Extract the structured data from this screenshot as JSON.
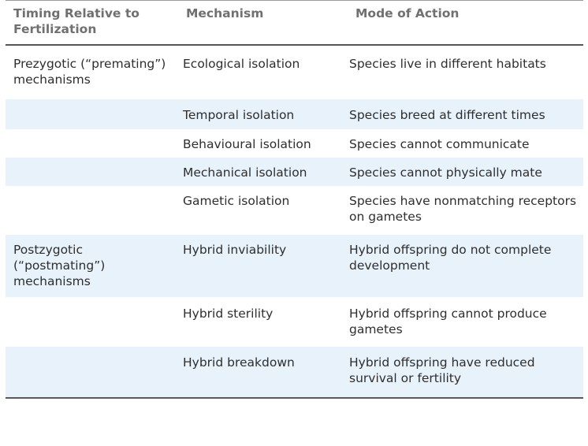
{
  "table": {
    "headers": {
      "timing": "Timing Relative to Fertilization",
      "mechanism": "Mechanism",
      "mode": "Mode of Action"
    },
    "rows": [
      {
        "timing": "Prezygotic (“premating”) mechanisms",
        "mechanism": "Ecological isolation",
        "mode": "Species live in different habitats",
        "shaded": false
      },
      {
        "timing": "",
        "mechanism": "Temporal isolation",
        "mode": "Species breed at different times",
        "shaded": true
      },
      {
        "timing": "",
        "mechanism": "Behavioural isolation",
        "mode": "Species cannot communicate",
        "shaded": false
      },
      {
        "timing": "",
        "mechanism": "Mechanical isolation",
        "mode": "Species cannot physically mate",
        "shaded": true
      },
      {
        "timing": "",
        "mechanism": "Gametic isolation",
        "mode": "Species have nonmatching receptors on gametes",
        "shaded": false
      },
      {
        "timing": "Postzygotic (“postmating”) mechanisms",
        "mechanism": "Hybrid inviability",
        "mode": "Hybrid offspring do not complete development",
        "shaded": true
      },
      {
        "timing": "",
        "mechanism": "Hybrid sterility",
        "mode": "Hybrid offspring cannot produce gametes",
        "shaded": false
      },
      {
        "timing": "",
        "mechanism": "Hybrid breakdown",
        "mode": "Hybrid offspring have reduced survival or fertility",
        "shaded": true
      }
    ],
    "colors": {
      "shaded_row": "#e8f2fb",
      "header_text": "#707070",
      "body_text": "#2e2e2e"
    }
  }
}
